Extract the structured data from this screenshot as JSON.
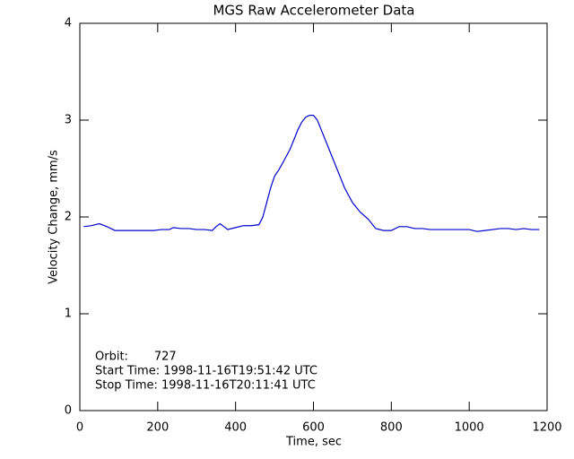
{
  "chart_data": {
    "type": "line",
    "title": "MGS Raw Accelerometer Data",
    "x_label": "Time, sec",
    "y_label": "Velocity Change, mm/s",
    "annotations": [
      "Orbit:       727",
      "Start Time: 1998-11-16T19:51:42 UTC",
      "Stop Time: 1998-11-16T20:11:41 UTC"
    ],
    "x": [
      10,
      30,
      50,
      70,
      90,
      110,
      130,
      150,
      170,
      190,
      210,
      230,
      240,
      260,
      280,
      300,
      320,
      340,
      350,
      360,
      370,
      380,
      400,
      420,
      440,
      460,
      470,
      480,
      490,
      500,
      510,
      520,
      540,
      550,
      560,
      570,
      580,
      590,
      600,
      610,
      620,
      640,
      660,
      680,
      700,
      720,
      740,
      760,
      780,
      800,
      820,
      840,
      860,
      880,
      900,
      920,
      940,
      960,
      980,
      1000,
      1020,
      1040,
      1060,
      1080,
      1100,
      1120,
      1140,
      1160,
      1180
    ],
    "values": [
      1.9,
      1.91,
      1.93,
      1.9,
      1.86,
      1.86,
      1.86,
      1.86,
      1.86,
      1.86,
      1.87,
      1.87,
      1.89,
      1.88,
      1.88,
      1.87,
      1.87,
      1.86,
      1.9,
      1.93,
      1.9,
      1.87,
      1.89,
      1.91,
      1.91,
      1.92,
      2.0,
      2.15,
      2.3,
      2.42,
      2.48,
      2.55,
      2.7,
      2.8,
      2.9,
      2.98,
      3.03,
      3.05,
      3.05,
      3.0,
      2.9,
      2.7,
      2.5,
      2.3,
      2.15,
      2.05,
      1.98,
      1.88,
      1.86,
      1.86,
      1.9,
      1.9,
      1.88,
      1.88,
      1.87,
      1.87,
      1.87,
      1.87,
      1.87,
      1.87,
      1.85,
      1.86,
      1.87,
      1.88,
      1.88,
      1.87,
      1.88,
      1.87,
      1.87
    ],
    "color": "#0000cc",
    "xlim": [
      0,
      1200
    ],
    "xticks": [
      0,
      200,
      400,
      600,
      800,
      1000,
      1200
    ],
    "ylim": [
      0,
      4
    ],
    "yticks": [
      0,
      1,
      2,
      3,
      4
    ],
    "grid": false
  }
}
